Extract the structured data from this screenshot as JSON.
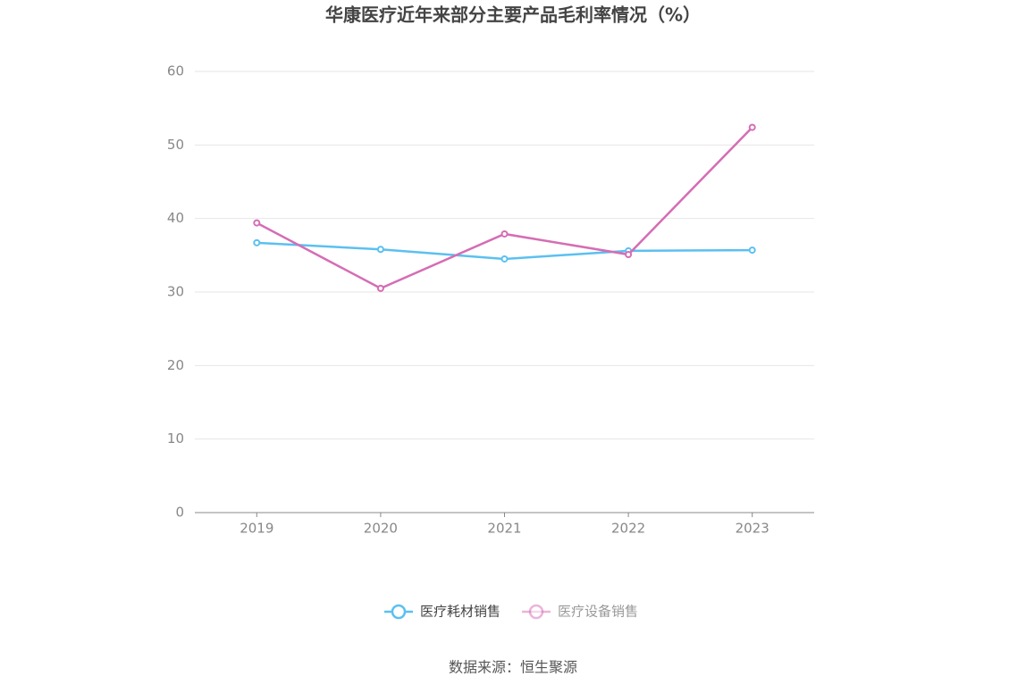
{
  "chart_data": {
    "type": "line",
    "title": "华康医疗近年来部分主要产品毛利率情况（%）",
    "categories": [
      "2019",
      "2020",
      "2021",
      "2022",
      "2023"
    ],
    "series": [
      {
        "name": "医疗耗材销售",
        "color": "#5bc0f0",
        "values": [
          36.7,
          35.8,
          34.5,
          35.6,
          35.7
        ]
      },
      {
        "name": "医疗设备销售",
        "color": "#d56db4",
        "values": [
          39.4,
          30.5,
          37.9,
          35.1,
          52.4
        ]
      }
    ],
    "ylim": [
      0,
      60
    ],
    "yticks": [
      0,
      10,
      20,
      30,
      40,
      50,
      60
    ],
    "grid": true,
    "source": "数据来源：恒生聚源"
  }
}
